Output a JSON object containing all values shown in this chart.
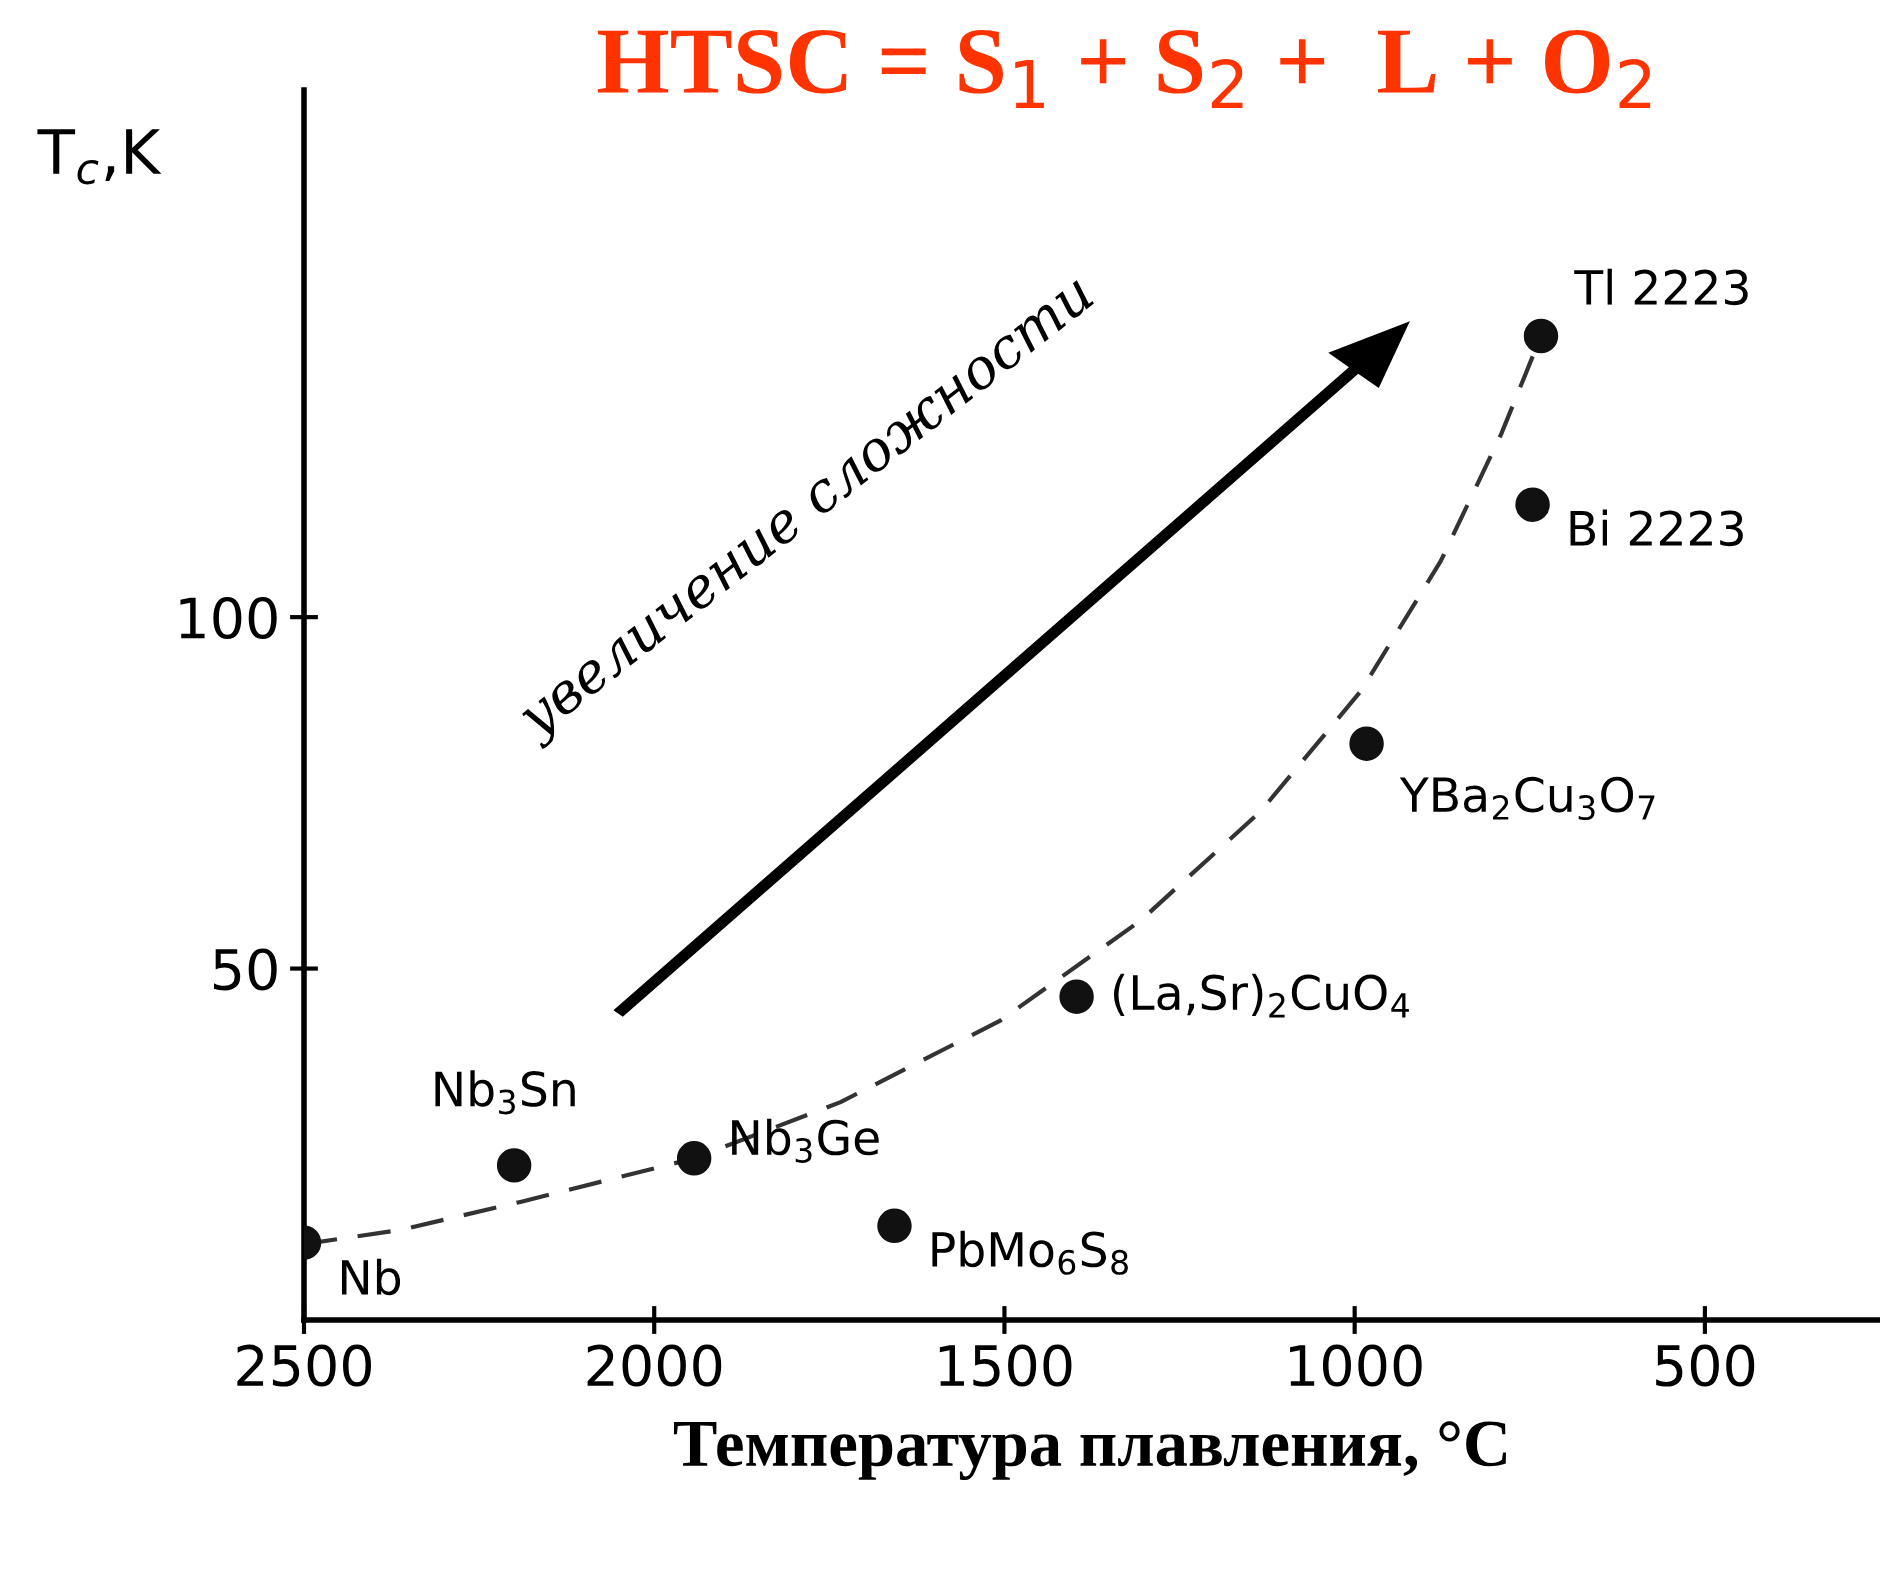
{
  "chart_data": {
    "type": "scatter",
    "title": "HTSC = S$_{1}$ + S$_{2}$ +  L + O$_{2}$",
    "xlabel": "Температура плавления, °C",
    "ylabel": "T$_{c}$,K",
    "xlim": [
      2500,
      250
    ],
    "ylim": [
      0,
      175
    ],
    "xticks": [
      2500,
      2000,
      1500,
      1000,
      500
    ],
    "yticks": [
      50,
      100
    ],
    "grid": false,
    "series": [
      {
        "color": "#111111",
        "marker": "circle",
        "x": [
          2500,
          2200,
          1943,
          1657,
          1397,
          983,
          746,
          734
        ],
        "values": [
          11,
          22,
          23,
          13.4,
          46,
          82,
          116,
          140
        ]
      },
      {
        "type": "line",
        "color": "#333333",
        "marker": "none",
        "line_style": "dashed",
        "x": [
          2500,
          2363,
          2191,
          1943,
          1734,
          1506,
          1306,
          1134,
          991,
          877,
          791,
          734
        ],
        "values": [
          10.8,
          12.8,
          16.8,
          23,
          31,
          42.6,
          56.8,
          72.4,
          89.5,
          108,
          126,
          140
        ]
      }
    ],
    "annotations": [
      {
        "text": "Nb",
        "x": 2500,
        "y": 11
      },
      {
        "text": "Nb$_{3}$Sn",
        "x": 2200,
        "y": 22
      },
      {
        "text": "Nb$_{3}$Ge",
        "x": 1943,
        "y": 23
      },
      {
        "text": "PbMo$_{6}$S$_{8}$",
        "x": 1657,
        "y": 13.4
      },
      {
        "text": "(La,Sr)$_{2}$CuO$_{4}$",
        "x": 1397,
        "y": 46
      },
      {
        "text": "YBa$_{2}$Cu$_{3}$O$_{7}$",
        "x": 983,
        "y": 82
      },
      {
        "text": "Bi 2223",
        "x": 746,
        "y": 116
      },
      {
        "text": "Tl 2223",
        "x": 734,
        "y": 140
      },
      "увеличение сложности"
    ]
  }
}
